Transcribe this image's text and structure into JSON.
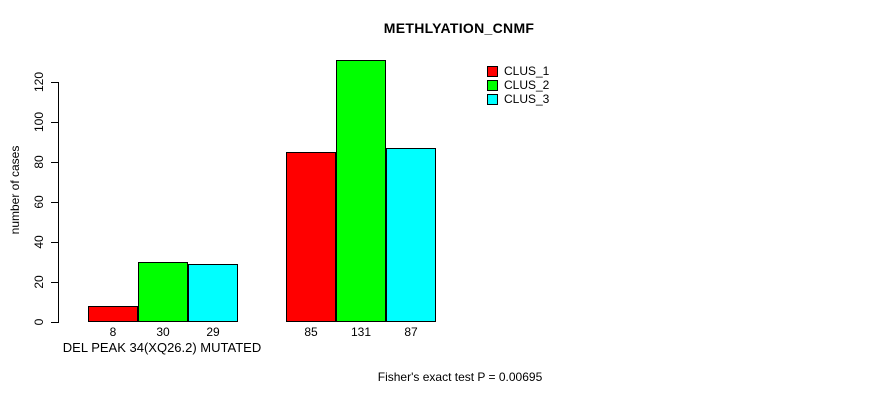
{
  "title": "METHLYATION_CNMF",
  "ylabel": "number of cases",
  "footer": "Fisher's exact test P = 0.00695",
  "chart_data": {
    "type": "bar",
    "title": "METHLYATION_CNMF",
    "xlabel": "",
    "ylabel": "number of cases",
    "ylim": [
      0,
      131
    ],
    "yticks": [
      0,
      20,
      40,
      60,
      80,
      100,
      120
    ],
    "grid": false,
    "legend_position": "top-right",
    "series_names": [
      "CLUS_1",
      "CLUS_2",
      "CLUS_3"
    ],
    "series_colors": [
      "#FF0000",
      "#00FF00",
      "#00FFFF"
    ],
    "groups": [
      {
        "label": "DEL PEAK 34(XQ26.2) MUTATED",
        "values": [
          8,
          30,
          29
        ]
      },
      {
        "label": "",
        "values": [
          85,
          131,
          87
        ]
      }
    ],
    "bar_value_labels": [
      8,
      30,
      29,
      85,
      131,
      87
    ],
    "annotation": "Fisher's exact test P = 0.00695"
  }
}
